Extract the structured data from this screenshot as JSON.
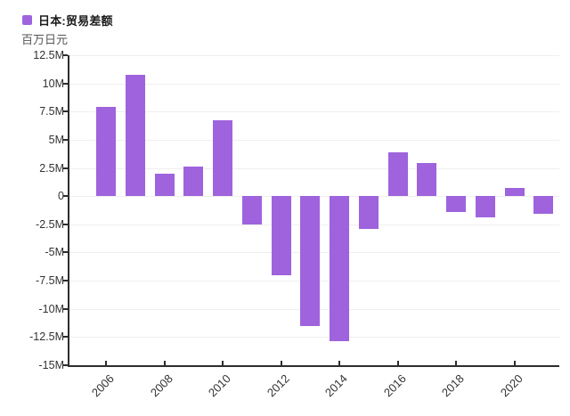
{
  "legend": {
    "label": "日本:贸易差额",
    "marker_color": "#9e63dd"
  },
  "subtitle": "百万日元",
  "chart_data": {
    "type": "bar",
    "title": "日本:贸易差额",
    "ylabel": "百万日元",
    "xlabel": "",
    "categories": [
      "2006",
      "2007",
      "2008",
      "2009",
      "2010",
      "2011",
      "2012",
      "2013",
      "2014",
      "2015",
      "2016",
      "2017",
      "2018",
      "2019",
      "2020",
      "2021"
    ],
    "values": [
      7.9,
      10.8,
      2.0,
      2.6,
      6.7,
      -2.5,
      -7.0,
      -11.5,
      -12.9,
      -2.9,
      3.9,
      2.9,
      -1.4,
      -1.9,
      0.7,
      -1.6
    ],
    "value_unit": "M",
    "ylim": [
      -15,
      12.5
    ],
    "ytick_step": 2.5,
    "ytick_labels": [
      "12.5M",
      "10M",
      "7.5M",
      "5M",
      "2.5M",
      "0",
      "-2.5M",
      "-5M",
      "-7.5M",
      "-10M",
      "-12.5M",
      "-15M"
    ],
    "xtick_labels": [
      "2006",
      "2008",
      "2010",
      "2012",
      "2014",
      "2016",
      "2018",
      "2020"
    ],
    "xtick_years": [
      2006,
      2008,
      2010,
      2012,
      2014,
      2016,
      2018,
      2020
    ],
    "grid": true,
    "bar_color": "#9e63dd",
    "legend_position": "top-left"
  }
}
